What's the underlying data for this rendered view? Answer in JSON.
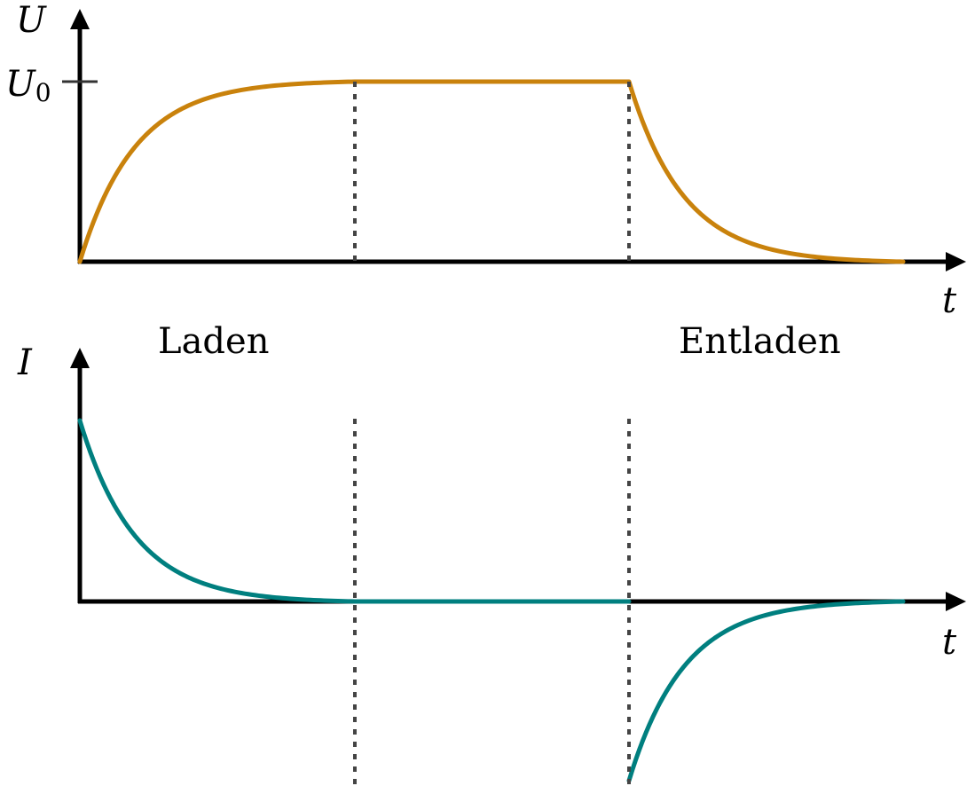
{
  "top_plot": {
    "y_axis_label": "U",
    "y_tick_label_main": "U",
    "y_tick_label_sub": "0",
    "x_axis_label": "t",
    "curve_color": "#C9820C"
  },
  "bottom_plot": {
    "y_axis_label": "I",
    "x_axis_label": "t",
    "curve_color": "#007F7F"
  },
  "phases": {
    "charging_label": "Laden",
    "discharging_label": "Entladen"
  },
  "guide_color": "#444444"
}
